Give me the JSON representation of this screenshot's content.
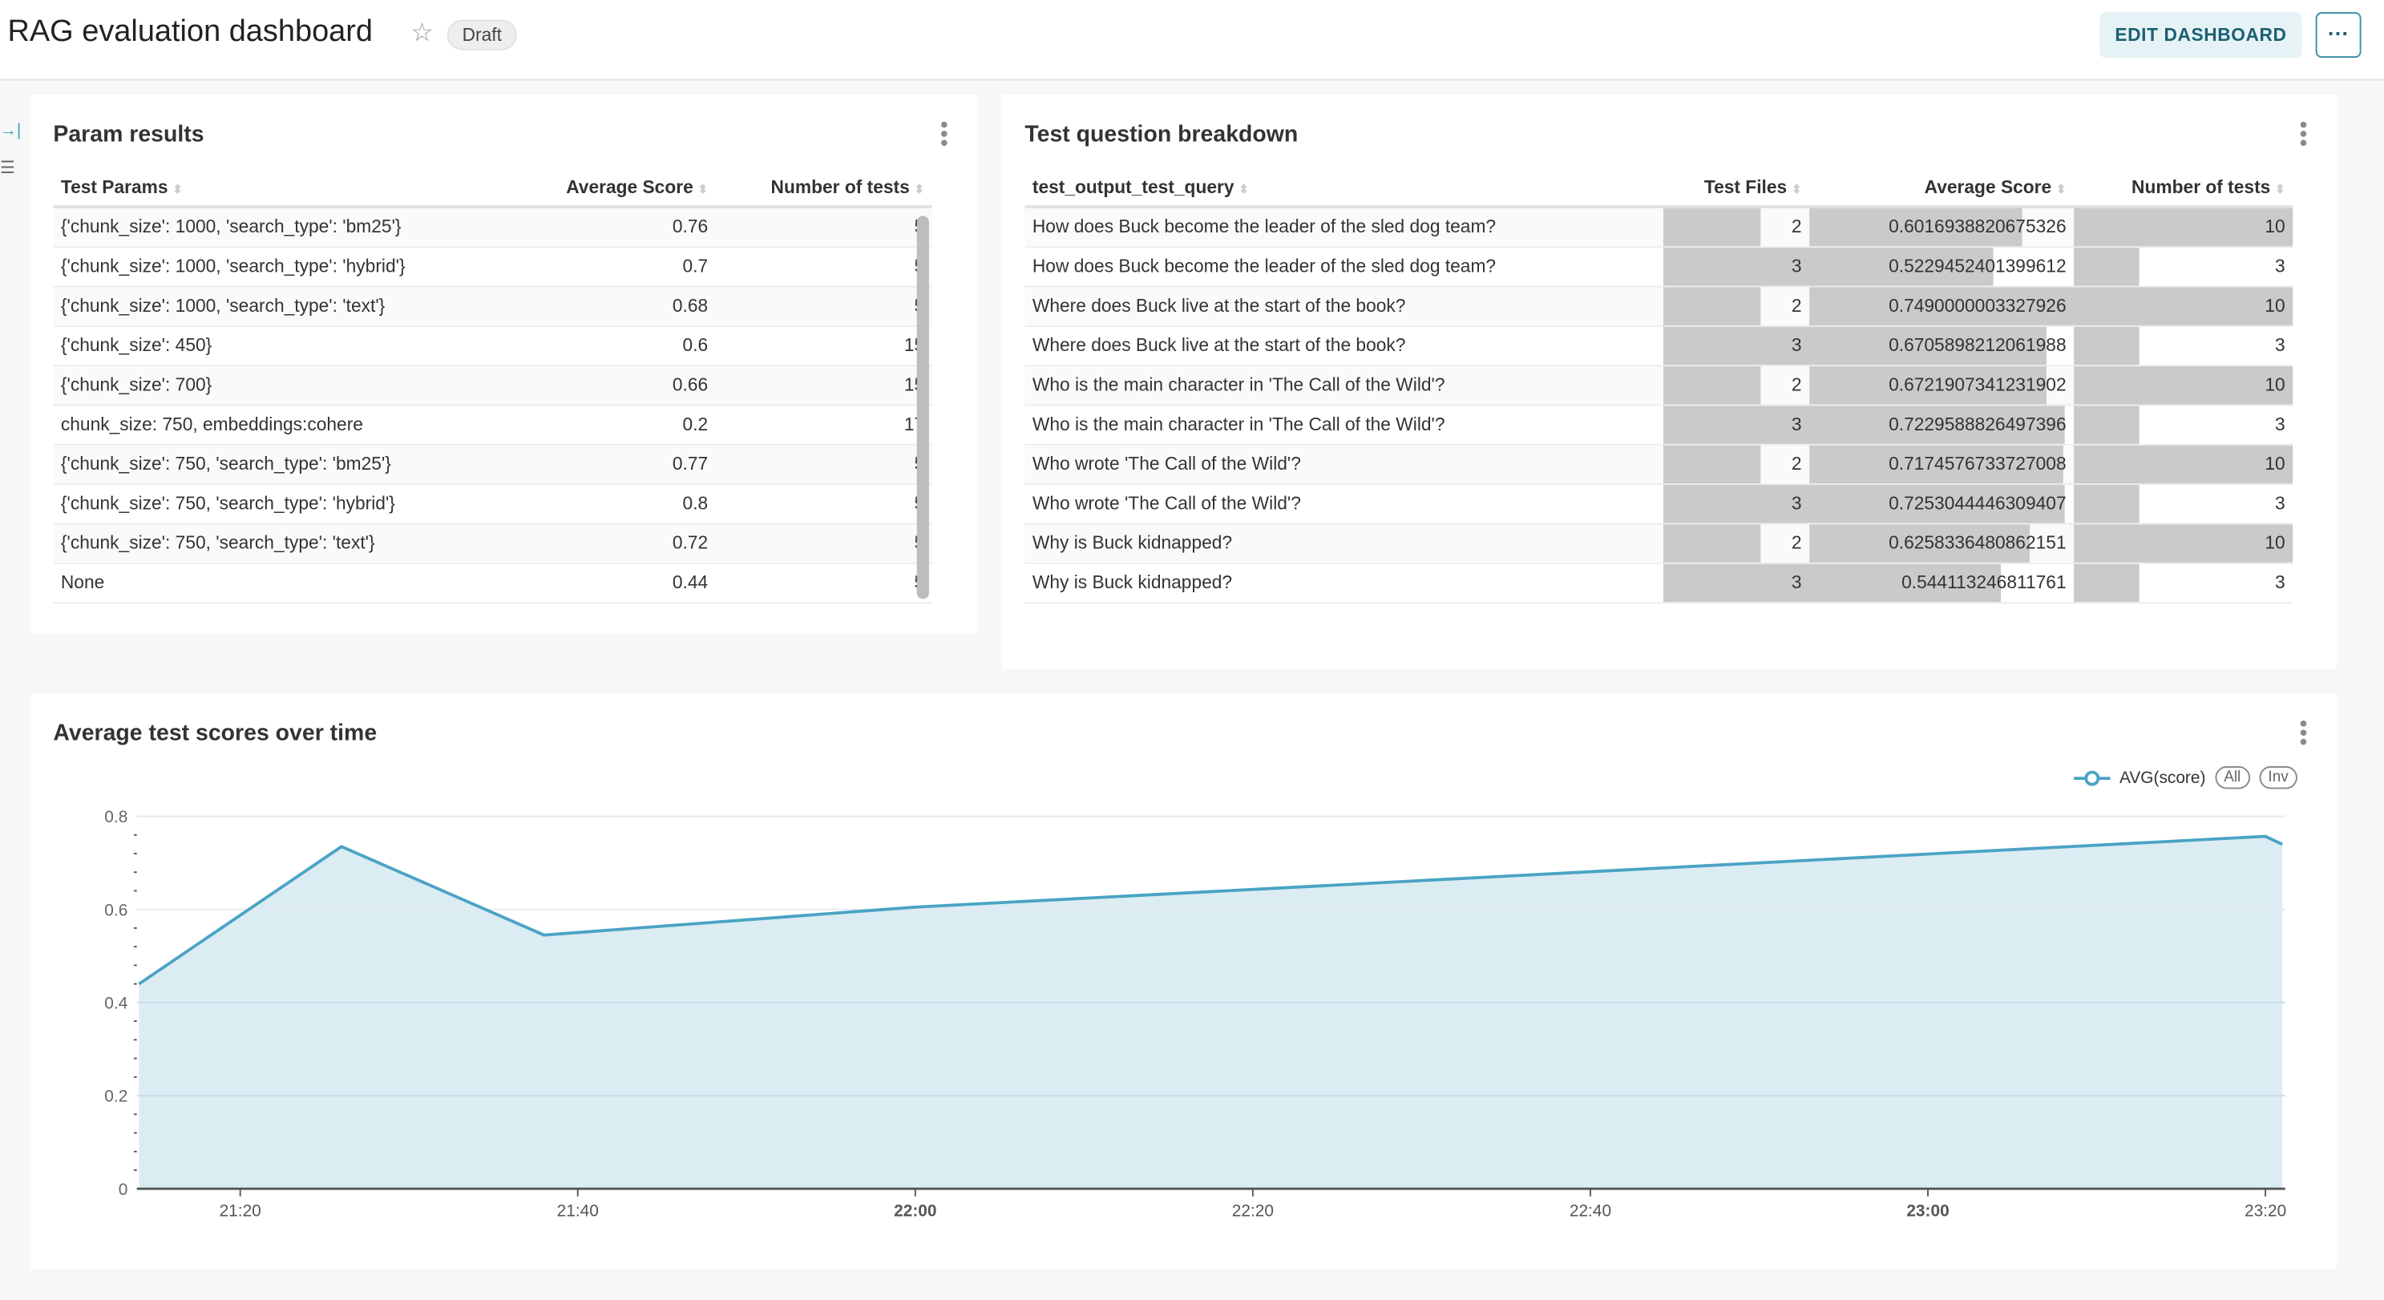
{
  "header": {
    "title": "RAG evaluation dashboard",
    "badge": "Draft",
    "edit_label": "EDIT DASHBOARD",
    "more_label": "···"
  },
  "param_results": {
    "title": "Param results",
    "columns": [
      "Test Params",
      "Average Score",
      "Number of tests"
    ],
    "rows": [
      [
        "{'chunk_size': 1000, 'search_type': 'bm25'}",
        "0.76",
        "5"
      ],
      [
        "{'chunk_size': 1000, 'search_type': 'hybrid'}",
        "0.7",
        "5"
      ],
      [
        "{'chunk_size': 1000, 'search_type': 'text'}",
        "0.68",
        "5"
      ],
      [
        "{'chunk_size': 450}",
        "0.6",
        "15"
      ],
      [
        "{'chunk_size': 700}",
        "0.66",
        "15"
      ],
      [
        "chunk_size: 750, embeddings:cohere",
        "0.2",
        "17"
      ],
      [
        "{'chunk_size': 750, 'search_type': 'bm25'}",
        "0.77",
        "5"
      ],
      [
        "{'chunk_size': 750, 'search_type': 'hybrid'}",
        "0.8",
        "5"
      ],
      [
        "{'chunk_size': 750, 'search_type': 'text'}",
        "0.72",
        "5"
      ],
      [
        "None",
        "0.44",
        "5"
      ]
    ]
  },
  "breakdown": {
    "title": "Test question breakdown",
    "columns": [
      "test_output_test_query",
      "Test Files",
      "Average Score",
      "Number of tests"
    ],
    "rows": [
      [
        "How does Buck become the leader of the sled dog team?",
        "2",
        "0.6016938820675326",
        "10"
      ],
      [
        "How does Buck become the leader of the sled dog team?",
        "3",
        "0.5229452401399612",
        "3"
      ],
      [
        "Where does Buck live at the start of the book?",
        "2",
        "0.7490000003327926",
        "10"
      ],
      [
        "Where does Buck live at the start of the book?",
        "3",
        "0.6705898212061988",
        "3"
      ],
      [
        "Who is the main character in 'The Call of the Wild'?",
        "2",
        "0.6721907341231902",
        "10"
      ],
      [
        "Who is the main character in 'The Call of the Wild'?",
        "3",
        "0.7229588826497396",
        "3"
      ],
      [
        "Who wrote 'The Call of the Wild'?",
        "2",
        "0.7174576733727008",
        "10"
      ],
      [
        "Who wrote 'The Call of the Wild'?",
        "3",
        "0.7253044446309407",
        "3"
      ],
      [
        "Why is Buck kidnapped?",
        "2",
        "0.6258336480862151",
        "10"
      ],
      [
        "Why is Buck kidnapped?",
        "3",
        "0.544113246811761",
        "3"
      ]
    ],
    "bar_color": "#cacaca"
  },
  "chart_panel": {
    "title": "Average test scores over time",
    "all_label": "All",
    "inv_label": "Inv"
  },
  "chart_data": {
    "type": "area",
    "series": [
      {
        "name": "AVG(score)",
        "x": [
          "21:14",
          "21:26",
          "21:38",
          "22:00",
          "23:20",
          "23:21"
        ],
        "values": [
          0.44,
          0.735,
          0.545,
          0.605,
          0.757,
          0.74
        ]
      }
    ],
    "x_ticks": [
      "21:20",
      "21:40",
      "22:00",
      "22:20",
      "22:40",
      "23:00",
      "23:20"
    ],
    "x_bold_ticks": [
      "22:00",
      "23:00"
    ],
    "y_ticks": [
      "0",
      "0.2",
      "0.4",
      "0.6",
      "0.8"
    ],
    "ylim": [
      0,
      0.8
    ],
    "grid": true,
    "legend": "top-right",
    "line_color": "#4aa3c4",
    "fill_color": "#dcecf3"
  }
}
